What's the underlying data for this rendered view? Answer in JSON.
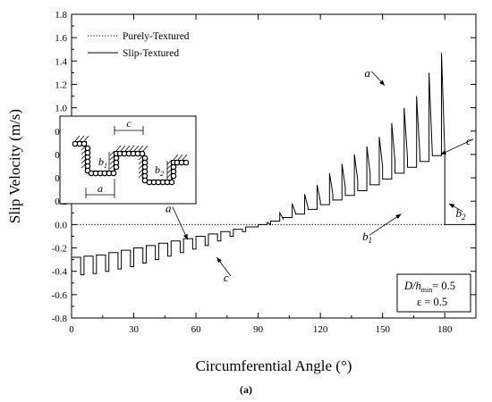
{
  "chart_data": {
    "type": "line",
    "xlabel": "Circumferential Angle (°)",
    "ylabel": "Slip Velocity (m/s)",
    "xlim": [
      0,
      195
    ],
    "ylim": [
      -0.8,
      1.8
    ],
    "x_ticks": [
      0,
      30,
      60,
      90,
      120,
      150,
      180
    ],
    "y_ticks": [
      -0.8,
      -0.6,
      -0.4,
      -0.2,
      0.0,
      0.2,
      0.4,
      0.6,
      0.8,
      1.0,
      1.2,
      1.4,
      1.6,
      1.8
    ],
    "x_tick_labels": [
      "0",
      "30",
      "60",
      "90",
      "120",
      "150",
      "180"
    ],
    "y_tick_labels": [
      "-0.8",
      "-0.6",
      "-0.4",
      "-0.2",
      "0.0",
      "0.2",
      "0.4",
      "0.6",
      "0.8",
      "1.0",
      "1.2",
      "1.4",
      "1.6",
      "1.8"
    ],
    "grid": false,
    "legend_placement": "top-left",
    "caption": "(a)",
    "series": [
      {
        "name": "Purely-Textured",
        "style": "dotted",
        "x": [
          0,
          180
        ],
        "y": [
          0,
          0
        ]
      },
      {
        "name": "Slip-Textured",
        "style": "solid",
        "texture_period_deg": 6,
        "groove_width_deg": 4.4,
        "x": [
          3,
          9,
          15,
          21,
          27,
          33,
          39,
          45,
          51,
          57,
          63,
          69,
          75,
          81,
          87,
          93,
          99,
          105,
          111,
          117,
          123,
          129,
          135,
          141,
          147,
          153,
          159,
          165,
          171,
          177
        ],
        "groove_level_y": [
          -0.28,
          -0.27,
          -0.26,
          -0.24,
          -0.22,
          -0.2,
          -0.18,
          -0.16,
          -0.14,
          -0.12,
          -0.1,
          -0.08,
          -0.06,
          -0.04,
          -0.02,
          0.0,
          0.03,
          0.06,
          0.09,
          0.13,
          0.17,
          0.21,
          0.25,
          0.29,
          0.34,
          0.39,
          0.44,
          0.49,
          0.54,
          0.59
        ],
        "land_end_y": [
          -0.43,
          -0.42,
          -0.4,
          -0.38,
          -0.36,
          -0.33,
          -0.3,
          -0.27,
          -0.24,
          -0.21,
          -0.18,
          -0.14,
          -0.1,
          -0.06,
          -0.02,
          0.0,
          0.05,
          0.1,
          0.15,
          0.2,
          0.26,
          0.32,
          0.38,
          0.44,
          0.5,
          0.54,
          0.57,
          0.59,
          0.6,
          0.61
        ],
        "peak_y": [
          -0.43,
          -0.42,
          -0.4,
          -0.38,
          -0.36,
          -0.33,
          -0.3,
          -0.27,
          -0.24,
          -0.21,
          -0.18,
          -0.14,
          -0.1,
          -0.06,
          -0.02,
          0.02,
          0.1,
          0.18,
          0.26,
          0.34,
          0.44,
          0.52,
          0.6,
          0.67,
          0.75,
          0.87,
          1.0,
          1.1,
          1.3,
          1.47
        ],
        "after_180_y": 0.0
      }
    ],
    "annotations": [
      {
        "text": "a",
        "x": 143,
        "y": 1.28,
        "arrow_to": [
          151,
          1.19
        ]
      },
      {
        "text": "c",
        "x": 192,
        "y": 0.7,
        "arrow_to": [
          178,
          0.6
        ]
      },
      {
        "text": "b",
        "sub": "2",
        "x": 187,
        "y": 0.08,
        "arrow_to": [
          182,
          0.18
        ]
      },
      {
        "text": "b",
        "sub": "1",
        "x": 142,
        "y": -0.12,
        "arrow_to": [
          159,
          0.09
        ]
      },
      {
        "text": "a",
        "x": 47,
        "y": 0.12,
        "arrow_to": [
          56,
          -0.13
        ]
      },
      {
        "text": "c",
        "x": 75,
        "y": -0.47,
        "arrow_to": [
          70,
          -0.28
        ]
      }
    ],
    "param_box": {
      "line1_symbol": "D/h",
      "line1_sub": "min",
      "line1_value": "= 0.5",
      "line2": "ε = 0.5"
    },
    "inset": {
      "labels": [
        "c",
        "b",
        "1",
        "b",
        "2",
        "a"
      ]
    }
  }
}
